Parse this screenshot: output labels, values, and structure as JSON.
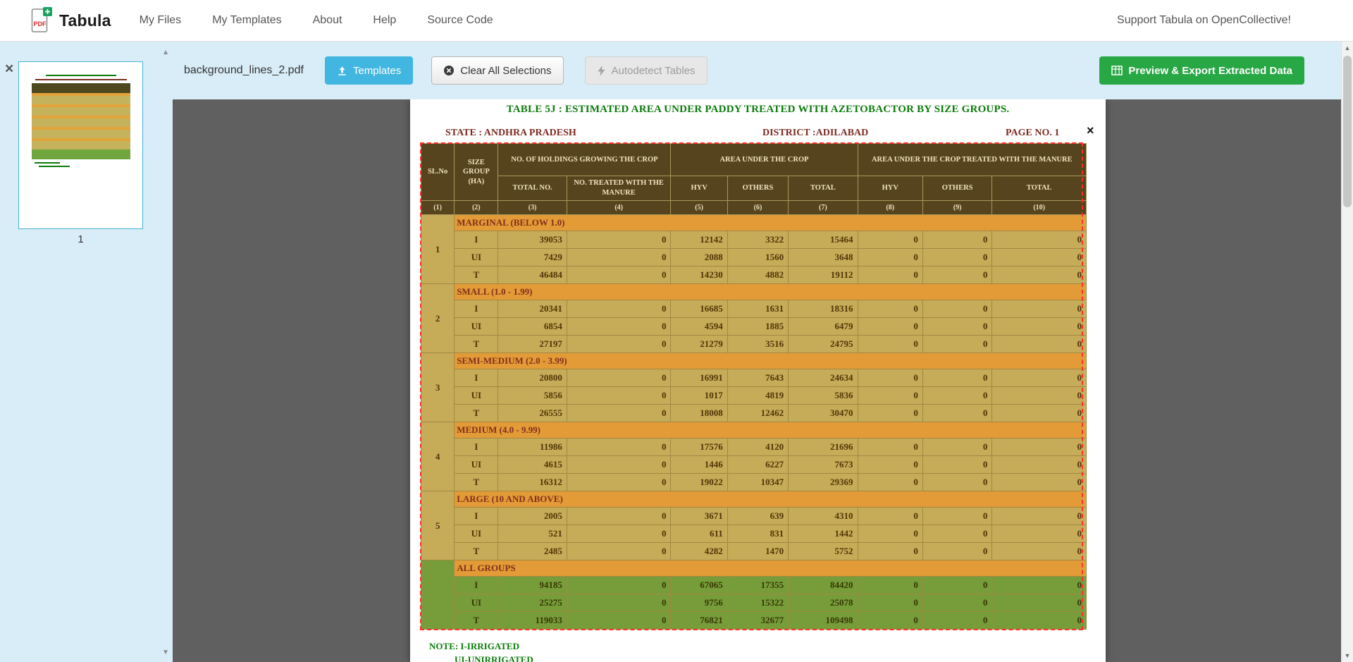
{
  "navbar": {
    "brand": "Tabula",
    "items": [
      {
        "label": "My Files"
      },
      {
        "label": "My Templates"
      },
      {
        "label": "About"
      },
      {
        "label": "Help"
      },
      {
        "label": "Source Code"
      }
    ],
    "support_text": "Support Tabula on OpenCollective!"
  },
  "toolbar": {
    "filename": "background_lines_2.pdf",
    "templates_label": "Templates",
    "clear_label": "Clear All Selections",
    "autodetect_label": "Autodetect Tables",
    "export_label": "Preview & Export Extracted Data"
  },
  "sidebar": {
    "page_number": "1"
  },
  "icons": {
    "close_glyph": "×",
    "up_arrow": "▲",
    "down_arrow": "▼"
  },
  "colors": {
    "templates_button": "#41b6e0",
    "export_button": "#28a745",
    "toolbar_bg": "#d8edf7",
    "document_bg": "#606060",
    "selection_border": "#ff2d2d",
    "table_header_bg": "#4e481f",
    "row_khaki": "#c4b35c",
    "row_orange": "#e2a33a",
    "row_green": "#71a53e",
    "title_green": "#0b7c0b",
    "meta_maroon": "#7d2b20"
  },
  "document": {
    "title": "TABLE 5J : ESTIMATED AREA UNDER PADDY  TREATED WITH AZETOBACTOR BY SIZE GROUPS.",
    "state_line": "STATE :  ANDHRA PRADESH",
    "district_line": "DISTRICT :ADILABAD",
    "page_line": "PAGE NO. 1",
    "note_line1": "NOTE: I-IRRIGATED",
    "note_line2": "UI-UNIRRIGATED"
  },
  "table": {
    "header": {
      "sl_no": "SL.No",
      "size_group": "SIZE GROUP (HA)",
      "holdings_group": "NO. OF HOLDINGS GROWING THE CROP",
      "area_group": "AREA UNDER THE CROP",
      "treated_group": "AREA UNDER THE CROP TREATED WITH THE MANURE",
      "sub_headers": [
        "TOTAL NO.",
        "NO. TREATED WITH THE MANURE",
        "HYV",
        "OTHERS",
        "TOTAL",
        "HYV",
        "OTHERS",
        "TOTAL"
      ],
      "col_numbers": [
        "(1)",
        "(2)",
        "(3)",
        "(4)",
        "(5)",
        "(6)",
        "(7)",
        "(8)",
        "(9)",
        "(10)"
      ]
    },
    "groups": [
      {
        "sl": "1",
        "label": "MARGINAL (BELOW 1.0)",
        "green": false,
        "rows": [
          {
            "type": "I",
            "values": [
              "39053",
              "0",
              "12142",
              "3322",
              "15464",
              "0",
              "0",
              "0"
            ]
          },
          {
            "type": "UI",
            "values": [
              "7429",
              "0",
              "2088",
              "1560",
              "3648",
              "0",
              "0",
              "0"
            ]
          },
          {
            "type": "T",
            "values": [
              "46484",
              "0",
              "14230",
              "4882",
              "19112",
              "0",
              "0",
              "0"
            ]
          }
        ]
      },
      {
        "sl": "2",
        "label": "SMALL (1.0 - 1.99)",
        "green": false,
        "rows": [
          {
            "type": "I",
            "values": [
              "20341",
              "0",
              "16685",
              "1631",
              "18316",
              "0",
              "0",
              "0"
            ]
          },
          {
            "type": "UI",
            "values": [
              "6854",
              "0",
              "4594",
              "1885",
              "6479",
              "0",
              "0",
              "0"
            ]
          },
          {
            "type": "T",
            "values": [
              "27197",
              "0",
              "21279",
              "3516",
              "24795",
              "0",
              "0",
              "0"
            ]
          }
        ]
      },
      {
        "sl": "3",
        "label": "SEMI-MEDIUM (2.0 - 3.99)",
        "green": false,
        "rows": [
          {
            "type": "I",
            "values": [
              "20800",
              "0",
              "16991",
              "7643",
              "24634",
              "0",
              "0",
              "0"
            ]
          },
          {
            "type": "UI",
            "values": [
              "5856",
              "0",
              "1017",
              "4819",
              "5836",
              "0",
              "0",
              "0"
            ]
          },
          {
            "type": "T",
            "values": [
              "26555",
              "0",
              "18008",
              "12462",
              "30470",
              "0",
              "0",
              "0"
            ]
          }
        ]
      },
      {
        "sl": "4",
        "label": "MEDIUM (4.0 - 9.99)",
        "green": false,
        "rows": [
          {
            "type": "I",
            "values": [
              "11986",
              "0",
              "17576",
              "4120",
              "21696",
              "0",
              "0",
              "0"
            ]
          },
          {
            "type": "UI",
            "values": [
              "4615",
              "0",
              "1446",
              "6227",
              "7673",
              "0",
              "0",
              "0"
            ]
          },
          {
            "type": "T",
            "values": [
              "16312",
              "0",
              "19022",
              "10347",
              "29369",
              "0",
              "0",
              "0"
            ]
          }
        ]
      },
      {
        "sl": "5",
        "label": "LARGE (10 AND ABOVE)",
        "green": false,
        "rows": [
          {
            "type": "I",
            "values": [
              "2005",
              "0",
              "3671",
              "639",
              "4310",
              "0",
              "0",
              "0"
            ]
          },
          {
            "type": "UI",
            "values": [
              "521",
              "0",
              "611",
              "831",
              "1442",
              "0",
              "0",
              "0"
            ]
          },
          {
            "type": "T",
            "values": [
              "2485",
              "0",
              "4282",
              "1470",
              "5752",
              "0",
              "0",
              "0"
            ]
          }
        ]
      },
      {
        "sl": "",
        "label": "ALL GROUPS",
        "green": true,
        "rows": [
          {
            "type": "I",
            "values": [
              "94185",
              "0",
              "67065",
              "17355",
              "84420",
              "0",
              "0",
              "0"
            ]
          },
          {
            "type": "UI",
            "values": [
              "25275",
              "0",
              "9756",
              "15322",
              "25078",
              "0",
              "0",
              "0"
            ]
          },
          {
            "type": "T",
            "values": [
              "119033",
              "0",
              "76821",
              "32677",
              "109498",
              "0",
              "0",
              "0"
            ]
          }
        ]
      }
    ]
  }
}
